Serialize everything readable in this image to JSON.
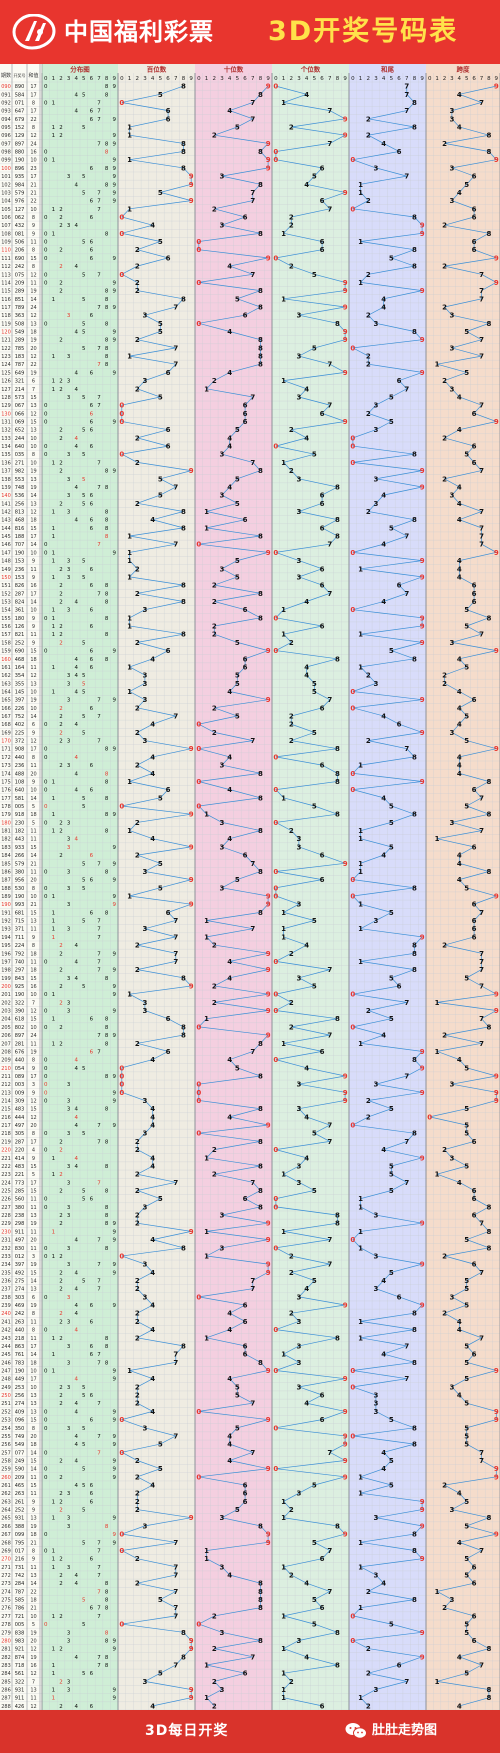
{
  "header": {
    "brand_text": "中国福利彩票",
    "title": "3D开奖号码表"
  },
  "footer": {
    "center_text": "3D每日开奖",
    "account_text": "肚肚走势图"
  },
  "colors": {
    "header_bg": "#e8352e",
    "title_yellow": "#ffe24a",
    "trend_line": "#3b8fd6",
    "highlight_red": "#e8352e",
    "zone_distribution": "#cfeed6",
    "zone_hundreds": "#efece2",
    "zone_tens": "#f4cfe0",
    "zone_units": "#dcefe0",
    "zone_sum": "#d8dcfa",
    "zone_span": "#f5dccb"
  },
  "icons": {
    "logo": "welfare-lottery-logo-icon",
    "footer": "wechat-icon"
  },
  "chart_data": {
    "type": "table",
    "column_headers": {
      "issue": "期数",
      "number": "开奖号",
      "tail": "和值",
      "distribution": "分布图",
      "hundreds": "百位数",
      "tens": "十位数",
      "units": "个位数",
      "sum": "和尾",
      "span": "跨度"
    },
    "digit_headers": [
      "0",
      "1",
      "2",
      "3",
      "4",
      "5",
      "6",
      "7",
      "8",
      "9"
    ],
    "first_issue": 90,
    "draws": [
      "890",
      "584",
      "071",
      "647",
      "679",
      "152",
      "129",
      "897",
      "880",
      "190",
      "896",
      "935",
      "984",
      "579",
      "976",
      "127",
      "062",
      "432",
      "081",
      "506",
      "206",
      "690",
      "242",
      "075",
      "209",
      "289",
      "851",
      "789",
      "363",
      "508",
      "549",
      "289",
      "785",
      "183",
      "787",
      "649",
      "321",
      "214",
      "573",
      "067",
      "066",
      "069",
      "652",
      "244",
      "640",
      "035",
      "271",
      "982",
      "553",
      "748",
      "536",
      "256",
      "813",
      "468",
      "816",
      "188",
      "707",
      "190",
      "153",
      "236",
      "153",
      "826",
      "287",
      "824",
      "361",
      "180",
      "126",
      "821",
      "252",
      "690",
      "468",
      "164",
      "354",
      "355",
      "145",
      "397",
      "226",
      "752",
      "402",
      "225",
      "372",
      "908",
      "440",
      "236",
      "488",
      "108",
      "640",
      "581",
      "005",
      "918",
      "230",
      "182",
      "443",
      "933",
      "266",
      "579",
      "380",
      "956",
      "530",
      "190",
      "993",
      "681",
      "715",
      "371",
      "711",
      "224",
      "792",
      "740",
      "297",
      "843",
      "925",
      "190",
      "322",
      "390",
      "618",
      "802",
      "897",
      "281",
      "676",
      "440",
      "054",
      "089",
      "003",
      "009",
      "309",
      "483",
      "444",
      "497",
      "305",
      "287",
      "220",
      "414",
      "483",
      "221",
      "773",
      "285",
      "560",
      "380",
      "238",
      "298",
      "911",
      "497",
      "830",
      "012",
      "397",
      "492",
      "275",
      "274",
      "303",
      "469",
      "242",
      "263",
      "440",
      "218",
      "863",
      "761",
      "783",
      "190",
      "449",
      "253",
      "256",
      "274",
      "409",
      "096",
      "350",
      "749",
      "549",
      "077",
      "249",
      "590",
      "209",
      "465",
      "263",
      "261",
      "252",
      "931",
      "388",
      "099",
      "795",
      "017",
      "216",
      "731",
      "742",
      "284",
      "787",
      "585",
      "786",
      "721",
      "005",
      "838",
      "983",
      "921",
      "874",
      "718",
      "561",
      "322",
      "931",
      "911",
      "426"
    ]
  }
}
